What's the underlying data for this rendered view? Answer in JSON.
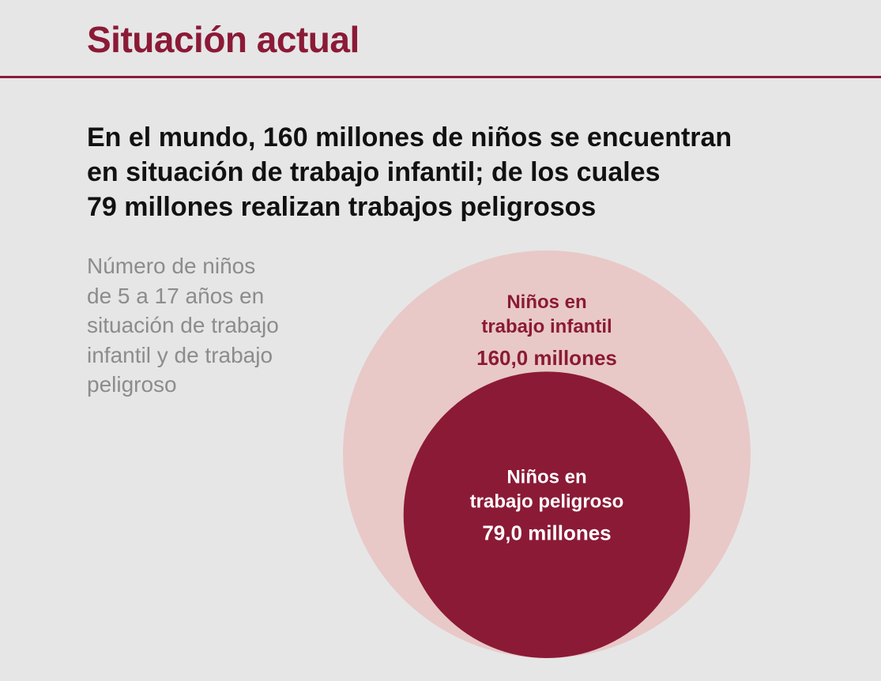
{
  "header": {
    "title": "Situación actual"
  },
  "headline": {
    "lines": [
      "En el mundo, 160 millones de niños se encuentran",
      "en situación de trabajo infantil; de los cuales",
      "79 millones realizan trabajos peligrosos"
    ]
  },
  "caption": {
    "lines": [
      "Número de niños",
      "de 5 a 17 años en",
      "situación de trabajo",
      "infantil y de trabajo",
      "peligroso"
    ]
  },
  "colors": {
    "accent": "#8b1a36",
    "outer_circle": "#e8c9c7",
    "background": "#e6e6e7",
    "caption_text": "#8c8c8c"
  },
  "chart_data": {
    "type": "nested-circles",
    "units": "millones",
    "series": [
      {
        "name_lines": [
          "Niños en",
          "trabajo infantil"
        ],
        "value": 160.0,
        "value_label": "160,0 millones",
        "color": "#e8c9c7",
        "text_color": "#8b1a36"
      },
      {
        "name_lines": [
          "Niños en",
          "trabajo peligroso"
        ],
        "value": 79.0,
        "value_label": "79,0 millones",
        "color": "#8b1a36",
        "text_color": "#ffffff"
      }
    ]
  }
}
